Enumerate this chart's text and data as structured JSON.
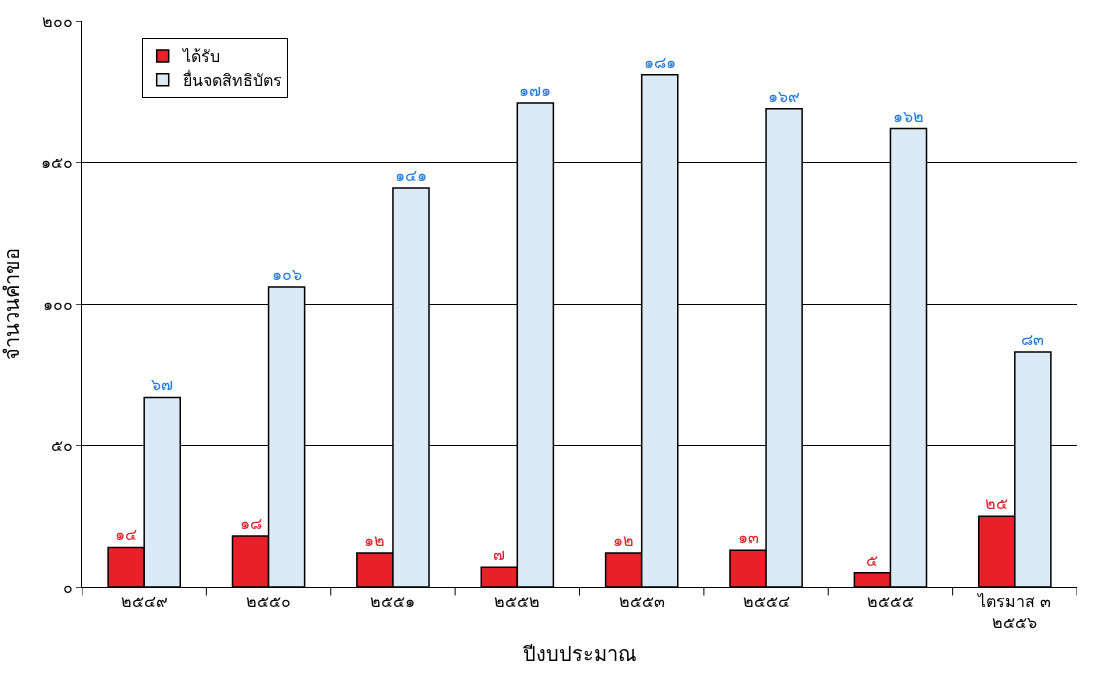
{
  "chart_data": {
    "type": "bar",
    "xlabel": "ปีงบประมาณ",
    "ylabel": "จำนวนคำขอ",
    "categories": [
      "๒๕๔๙",
      "๒๕๕๐",
      "๒๕๕๑",
      "๒๕๕๒",
      "๒๕๕๓",
      "๒๕๕๔",
      "๒๕๕๕",
      "ไตรมาส ๓\n๒๕๕๖"
    ],
    "series": [
      {
        "name": "ได้รับ",
        "color": "#e8202a",
        "values": [
          14,
          18,
          12,
          7,
          12,
          13,
          5,
          25
        ],
        "value_labels": [
          "๑๔",
          "๑๘",
          "๑๒",
          "๗",
          "๑๒",
          "๑๓",
          "๕",
          "๒๕"
        ]
      },
      {
        "name": "ยื่นจดสิทธิบัตร",
        "color": "#dce9f7",
        "values": [
          67,
          106,
          141,
          171,
          181,
          169,
          162,
          83
        ],
        "value_labels": [
          "๖๗",
          "๑๐๖",
          "๑๔๑",
          "๑๗๑",
          "๑๘๑",
          "๑๖๙",
          "๑๖๒",
          "๘๓"
        ]
      }
    ],
    "ylim": [
      0,
      200
    ],
    "yticks": [
      {
        "value": 0,
        "label": "๐"
      },
      {
        "value": 50,
        "label": "๕๐"
      },
      {
        "value": 100,
        "label": "๑๐๐"
      },
      {
        "value": 150,
        "label": "๑๕๐"
      },
      {
        "value": 200,
        "label": "๒๐๐"
      }
    ],
    "grid": "y",
    "legend": "top left"
  }
}
